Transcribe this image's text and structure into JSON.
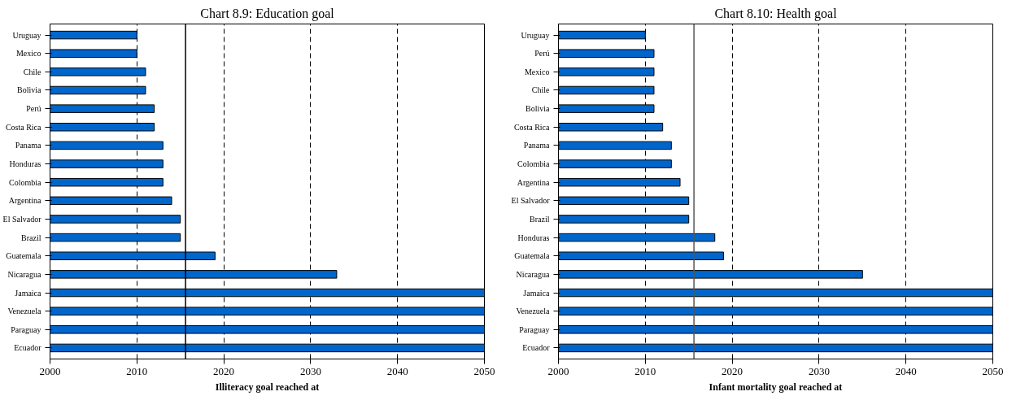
{
  "chart_data": [
    {
      "type": "bar",
      "orientation": "horizontal",
      "title": "Chart 8.9: Education goal",
      "xlabel": "Illiteracy goal reached at",
      "categories": [
        "Uruguay",
        "Mexico",
        "Chile",
        "Bolivia",
        "Perú",
        "Costa Rica",
        "Panama",
        "Honduras",
        "Colombia",
        "Argentina",
        "El Salvador",
        "Brazil",
        "Guatemala",
        "Nicaragua",
        "Jamaica",
        "Venezuela",
        "Paraguay",
        "Ecuador"
      ],
      "values": [
        2010,
        2010,
        2011,
        2011,
        2012,
        2012,
        2013,
        2013,
        2013,
        2014,
        2015,
        2015,
        2019,
        2033,
        2050,
        2050,
        2050,
        2050
      ],
      "color": "#0066cc",
      "xlim": [
        2000,
        2050
      ],
      "xticks": [
        2000,
        2010,
        2020,
        2030,
        2040,
        2050
      ],
      "grid": "x",
      "ref_lines": [
        {
          "axis": "x",
          "value": 2015.6,
          "color": "#000000"
        }
      ]
    },
    {
      "type": "bar",
      "orientation": "horizontal",
      "title": "Chart 8.10: Health goal",
      "xlabel": "Infant mortality goal reached at",
      "categories": [
        "Uruguay",
        "Perú",
        "Mexico",
        "Chile",
        "Bolivia",
        "Costa Rica",
        "Panama",
        "Colombia",
        "Argentina",
        "El Salvador",
        "Brazil",
        "Honduras",
        "Guatemala",
        "Nicaragua",
        "Jamaica",
        "Venezuela",
        "Paraguay",
        "Ecuador"
      ],
      "values": [
        2010,
        2011,
        2011,
        2011,
        2011,
        2012,
        2013,
        2013,
        2014,
        2015,
        2015,
        2018,
        2019,
        2035,
        2050,
        2050,
        2050,
        2050
      ],
      "color": "#0066cc",
      "xlim": [
        2000,
        2050
      ],
      "xticks": [
        2000,
        2010,
        2020,
        2030,
        2040,
        2050
      ],
      "grid": "x",
      "ref_lines": [
        {
          "axis": "x",
          "value": 2015.6,
          "color": "#555555"
        }
      ]
    }
  ]
}
